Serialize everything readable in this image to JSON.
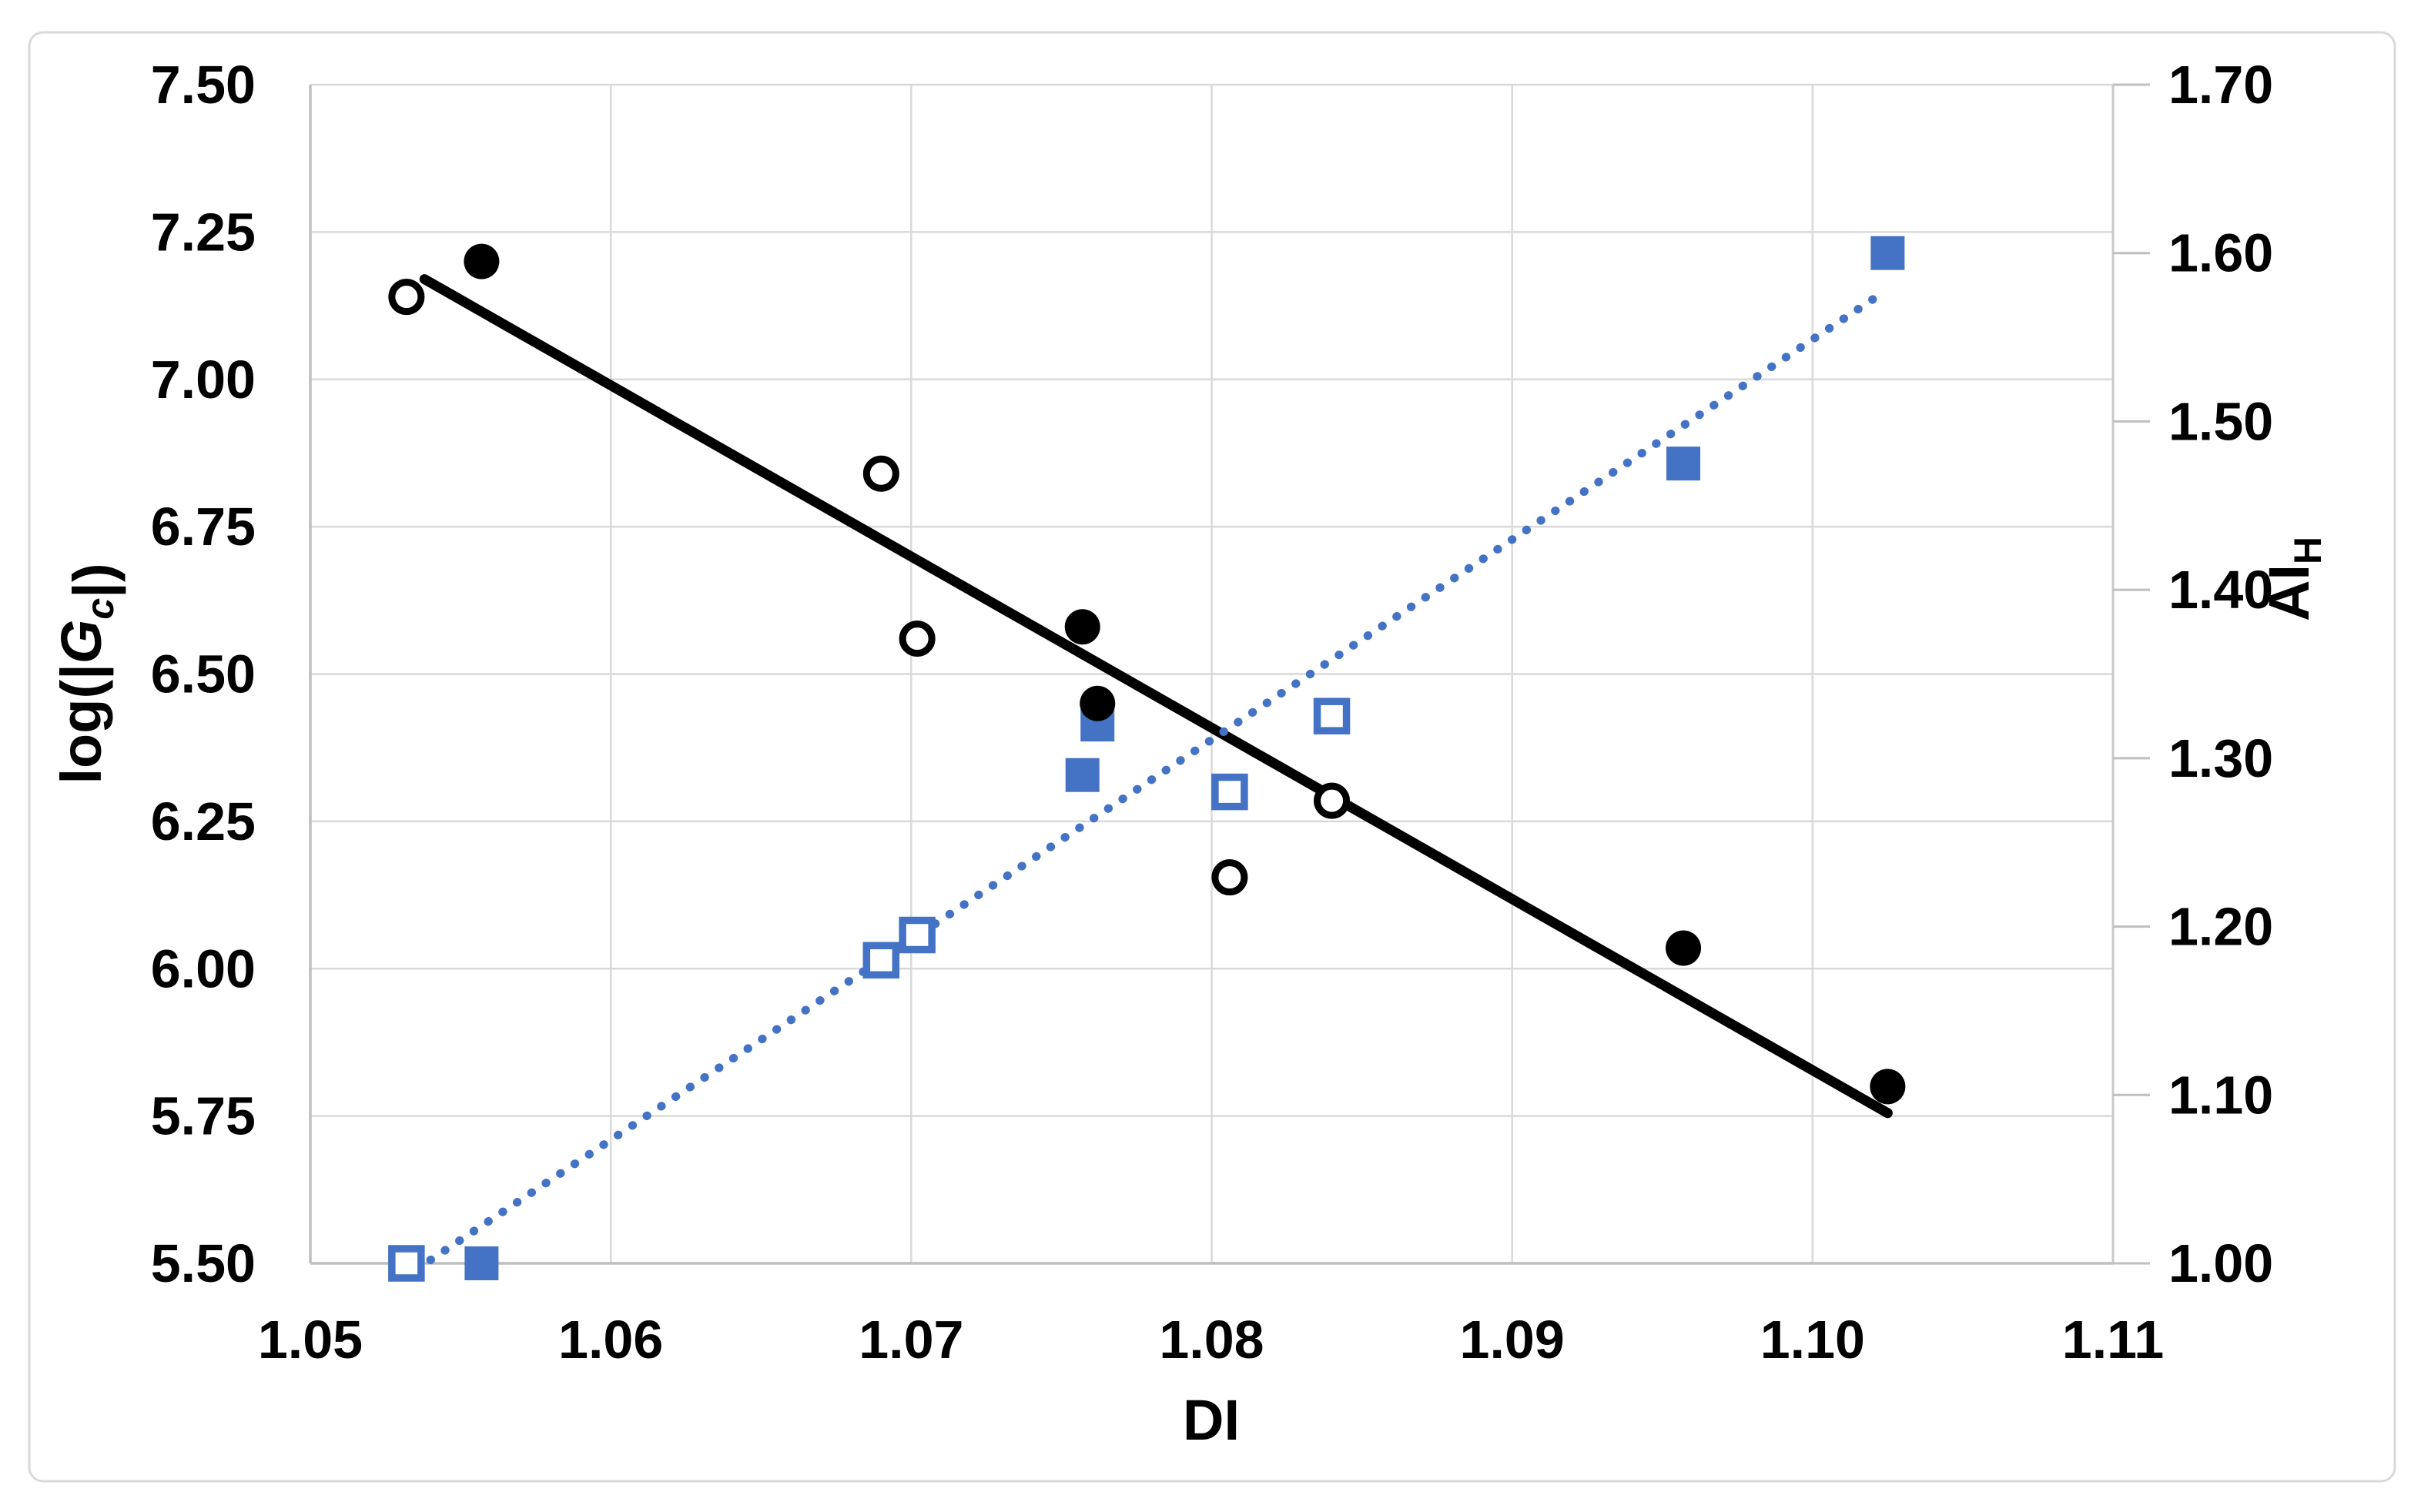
{
  "figure": {
    "background_color": "#ffffff",
    "border_color": "#d9d9d9",
    "gridline_color": "#d9d9d9",
    "axis_line_color": "#bfbfbf",
    "text_color": "#000000",
    "accent_blue": "#4472c4",
    "accent_black": "#000000"
  },
  "chart_data": {
    "type": "scatter",
    "title": "",
    "legend": "none",
    "grid": true,
    "x_axis": {
      "label": "DI",
      "min": 1.05,
      "max": 1.11,
      "tick_step": 0.01,
      "ticks": [
        "1.05",
        "1.06",
        "1.07",
        "1.08",
        "1.09",
        "1.10",
        "1.11"
      ]
    },
    "y_left_axis": {
      "label": "log(|Gc|)",
      "label_parts": [
        {
          "t": "log(|",
          "style": "normal"
        },
        {
          "t": "G",
          "style": "italic"
        },
        {
          "t": "c",
          "style": "sub-italic"
        },
        {
          "t": "|)",
          "style": "normal"
        }
      ],
      "min": 5.5,
      "max": 7.5,
      "tick_step": 0.25,
      "ticks": [
        "7.50",
        "7.25",
        "7.00",
        "6.75",
        "6.50",
        "6.25",
        "6.00",
        "5.75",
        "5.50"
      ]
    },
    "y_right_axis": {
      "label": "AIH",
      "label_parts": [
        {
          "t": "AI",
          "style": "normal"
        },
        {
          "t": "H",
          "style": "sub"
        }
      ],
      "min": 1.0,
      "max": 1.7,
      "tick_step": 0.1,
      "ticks": [
        "1.70",
        "1.60",
        "1.50",
        "1.40",
        "1.30",
        "1.20",
        "1.10",
        "1.00"
      ]
    },
    "series": [
      {
        "name": "open-squares",
        "axis": "right",
        "marker": "square-open",
        "color": "#4472c4",
        "points": [
          [
            1.0532,
            1.0
          ],
          [
            1.069,
            1.18
          ],
          [
            1.0702,
            1.195
          ],
          [
            1.0806,
            1.28
          ],
          [
            1.084,
            1.325
          ]
        ]
      },
      {
        "name": "filled-squares",
        "axis": "right",
        "marker": "square-filled",
        "color": "#4472c4",
        "points": [
          [
            1.0557,
            1.0
          ],
          [
            1.0757,
            1.29
          ],
          [
            1.0762,
            1.32
          ],
          [
            1.0957,
            1.475
          ],
          [
            1.1025,
            1.6
          ]
        ]
      },
      {
        "name": "open-circles",
        "axis": "left",
        "marker": "circle-open",
        "color": "#000000",
        "points": [
          [
            1.0532,
            7.14
          ],
          [
            1.069,
            6.84
          ],
          [
            1.0702,
            6.56
          ],
          [
            1.0806,
            6.155
          ],
          [
            1.084,
            6.285
          ]
        ]
      },
      {
        "name": "filled-circles",
        "axis": "left",
        "marker": "circle-filled",
        "color": "#000000",
        "points": [
          [
            1.0557,
            7.2
          ],
          [
            1.0757,
            6.58
          ],
          [
            1.0762,
            6.45
          ],
          [
            1.0957,
            6.035
          ],
          [
            1.1025,
            5.8
          ]
        ]
      }
    ],
    "trendlines": [
      {
        "name": "black-solid-trendline",
        "axis": "left",
        "style": "solid",
        "color": "#000000",
        "x1": 1.0538,
        "y1": 7.17,
        "x2": 1.1025,
        "y2": 5.755
      },
      {
        "name": "blue-dotted-trendline",
        "axis": "right",
        "style": "dotted",
        "color": "#4472c4",
        "x1": 1.054,
        "y1": 1.002,
        "x2": 1.1023,
        "y2": 1.576
      }
    ]
  }
}
